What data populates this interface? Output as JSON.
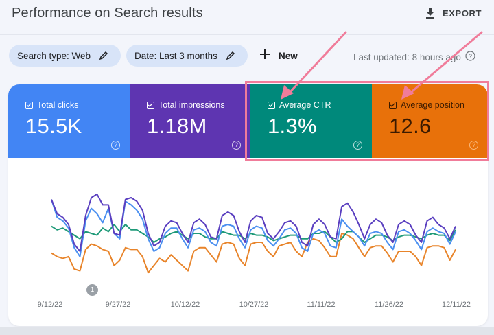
{
  "header": {
    "title": "Performance on Search results",
    "export_label": "EXPORT"
  },
  "filters": {
    "search_type": "Search type: Web",
    "date": "Date: Last 3 months",
    "new_label": "New",
    "last_updated": "Last updated: 8 hours ago"
  },
  "cards": [
    {
      "label": "Total clicks",
      "value": "15.5K",
      "bg": "#4285f4",
      "fg": "#ffffff",
      "checked": true
    },
    {
      "label": "Total impressions",
      "value": "1.18M",
      "bg": "#5e35b1",
      "fg": "#ffffff",
      "checked": true
    },
    {
      "label": "Average CTR",
      "value": "1.3%",
      "bg": "#00897b",
      "fg": "#ffffff",
      "checked": true
    },
    {
      "label": "Average position",
      "value": "12.6",
      "bg": "#e8710a",
      "fg": "#3a1a00",
      "checked": true
    }
  ],
  "annotation": {
    "marker": "1"
  },
  "colors": {
    "highlight": "#f07c9a",
    "clicks": "#4a8ff0",
    "impressions": "#5a3fc0",
    "ctr": "#1e9a78",
    "position": "#e8842a"
  },
  "chart_data": {
    "type": "line",
    "title": "Performance on Search results",
    "x_tick_labels": [
      "9/12/22",
      "9/27/22",
      "10/12/22",
      "10/27/22",
      "11/11/22",
      "11/26/22",
      "12/11/22"
    ],
    "xlabel": "",
    "ylabel": "",
    "grid": false,
    "legend": [
      "Total clicks",
      "Total impressions",
      "Average CTR",
      "Average position"
    ],
    "note": "Normalized relative levels (0-100, higher = higher on chart); each series has its own hidden axis",
    "series": [
      {
        "name": "Total impressions",
        "values": [
          88,
          72,
          68,
          60,
          38,
          30,
          70,
          90,
          94,
          82,
          82,
          50,
          48,
          88,
          90,
          86,
          76,
          50,
          36,
          40,
          58,
          64,
          62,
          50,
          40,
          62,
          66,
          60,
          46,
          44,
          70,
          74,
          70,
          52,
          40,
          64,
          70,
          68,
          50,
          44,
          52,
          62,
          64,
          58,
          40,
          36,
          60,
          66,
          60,
          46,
          44,
          80,
          84,
          74,
          60,
          44,
          60,
          66,
          62,
          48,
          40,
          60,
          64,
          60,
          48,
          40,
          64,
          68,
          60,
          56,
          44,
          58
        ]
      },
      {
        "name": "Total clicks",
        "values": [
          88,
          68,
          64,
          56,
          34,
          24,
          64,
          78,
          72,
          62,
          78,
          50,
          44,
          86,
          82,
          76,
          66,
          44,
          30,
          34,
          50,
          56,
          56,
          44,
          34,
          54,
          56,
          52,
          40,
          36,
          58,
          60,
          58,
          44,
          34,
          54,
          58,
          56,
          42,
          36,
          44,
          54,
          56,
          50,
          34,
          30,
          50,
          54,
          50,
          36,
          34,
          66,
          58,
          52,
          46,
          36,
          50,
          52,
          50,
          40,
          32,
          52,
          54,
          50,
          42,
          32,
          52,
          56,
          52,
          50,
          38,
          52
        ]
      },
      {
        "name": "Average CTR",
        "values": [
          58,
          54,
          56,
          52,
          48,
          44,
          52,
          50,
          48,
          56,
          52,
          60,
          52,
          60,
          54,
          54,
          50,
          46,
          40,
          44,
          46,
          50,
          52,
          48,
          44,
          50,
          50,
          46,
          44,
          44,
          52,
          50,
          48,
          48,
          44,
          50,
          48,
          48,
          46,
          42,
          44,
          46,
          48,
          48,
          44,
          44,
          50,
          50,
          52,
          46,
          40,
          44,
          52,
          52,
          46,
          40,
          44,
          48,
          48,
          46,
          42,
          46,
          48,
          48,
          46,
          44,
          48,
          50,
          48,
          48,
          42,
          54
        ]
      },
      {
        "name": "Average position",
        "values": [
          28,
          24,
          22,
          24,
          10,
          8,
          32,
          38,
          36,
          32,
          30,
          14,
          20,
          34,
          32,
          32,
          24,
          6,
          14,
          22,
          18,
          26,
          20,
          14,
          8,
          30,
          34,
          34,
          26,
          18,
          38,
          40,
          38,
          22,
          14,
          38,
          40,
          40,
          30,
          24,
          36,
          38,
          40,
          30,
          24,
          40,
          44,
          42,
          34,
          24,
          24,
          50,
          48,
          44,
          34,
          24,
          34,
          36,
          36,
          28,
          18,
          30,
          30,
          30,
          24,
          14,
          34,
          36,
          36,
          34,
          20,
          32
        ]
      }
    ]
  }
}
